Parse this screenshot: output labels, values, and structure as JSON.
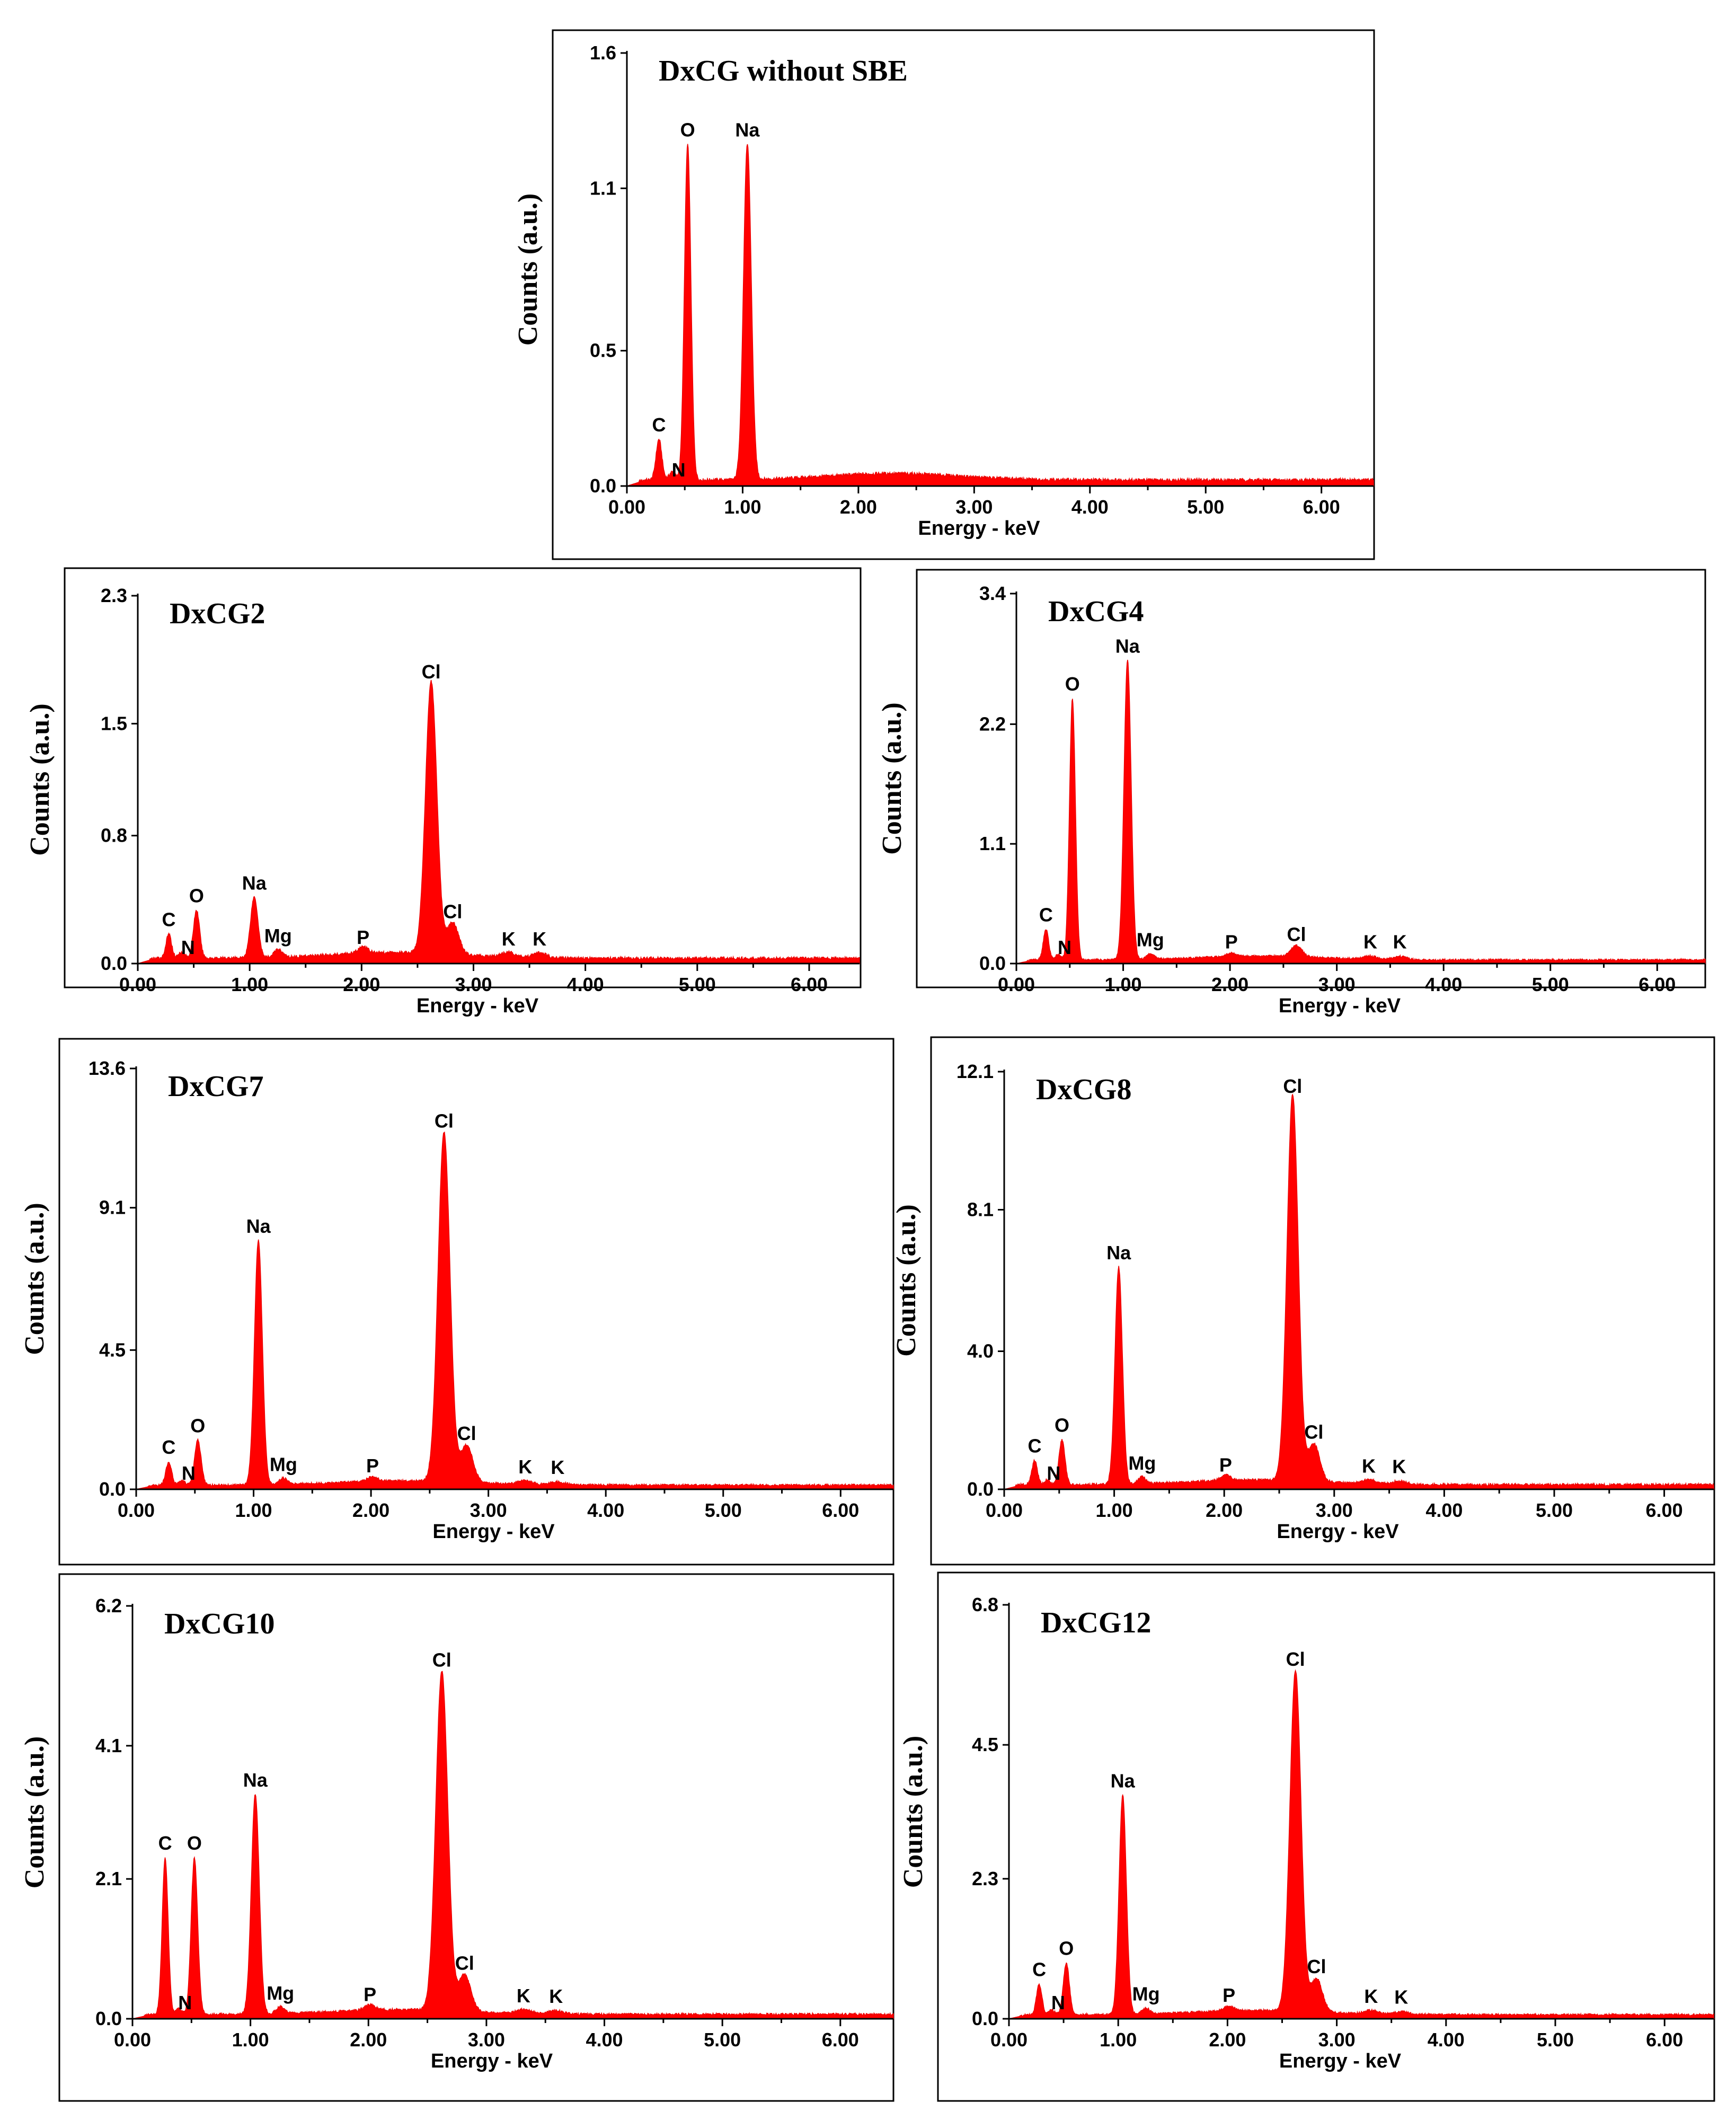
{
  "figure": {
    "common_xlabel": "Energy - keV",
    "common_ylabel": "Counts (a.u.)",
    "spectrum_color": "#ff0000"
  },
  "chart_data": [
    {
      "type": "area",
      "title": "DxCG without SBE",
      "xlabel": "Energy - keV",
      "ylabel": "Counts (a.u.)",
      "xlim": [
        0,
        6.45
      ],
      "ylim": [
        0,
        1.6
      ],
      "xticks": [
        "0.00",
        "1.00",
        "2.00",
        "3.00",
        "4.00",
        "5.00",
        "6.00"
      ],
      "yticks": [
        {
          "v": 0.0,
          "label": "0.0"
        },
        {
          "v": 0.5,
          "label": "0.5"
        },
        {
          "v": 1.1,
          "label": "1.1"
        },
        {
          "v": 1.6,
          "label": "1.6"
        }
      ],
      "baseline": 0.02,
      "peaks": [
        {
          "element": "C",
          "energy": 0.277,
          "height": 0.15
        },
        {
          "element": "N",
          "energy": 0.392,
          "height": 0.03
        },
        {
          "element": "O",
          "energy": 0.525,
          "height": 1.24
        },
        {
          "element": "Na",
          "energy": 1.041,
          "height": 1.24
        }
      ]
    },
    {
      "type": "area",
      "title": "DxCG2",
      "xlabel": "Energy - keV",
      "ylabel": "Counts (a.u.)",
      "xlim": [
        0,
        6.45
      ],
      "ylim": [
        0,
        2.3
      ],
      "xticks": [
        "0.00",
        "1.00",
        "2.00",
        "3.00",
        "4.00",
        "5.00",
        "6.00"
      ],
      "yticks": [
        {
          "v": 0.0,
          "label": "0.0"
        },
        {
          "v": 0.8,
          "label": "0.8"
        },
        {
          "v": 1.5,
          "label": "1.5"
        },
        {
          "v": 2.3,
          "label": "2.3"
        }
      ],
      "baseline": 0.03,
      "peaks": [
        {
          "element": "C",
          "energy": 0.277,
          "height": 0.15
        },
        {
          "element": "N",
          "energy": 0.392,
          "height": 0.04
        },
        {
          "element": "O",
          "energy": 0.525,
          "height": 0.3
        },
        {
          "element": "Na",
          "energy": 1.041,
          "height": 0.38
        },
        {
          "element": "Mg",
          "energy": 1.254,
          "height": 0.05
        },
        {
          "element": "P",
          "energy": 2.013,
          "height": 0.04
        },
        {
          "element": "Cl",
          "energy": 2.622,
          "height": 1.7
        },
        {
          "element": "Cl",
          "energy": 2.815,
          "height": 0.2
        },
        {
          "element": "K",
          "energy": 3.314,
          "height": 0.03
        },
        {
          "element": "K",
          "energy": 3.59,
          "height": 0.03
        }
      ]
    },
    {
      "type": "area",
      "title": "DxCG4",
      "xlabel": "Energy - keV",
      "ylabel": "Counts (a.u.)",
      "xlim": [
        0,
        6.45
      ],
      "ylim": [
        0,
        3.4
      ],
      "xticks": [
        "0.00",
        "1.00",
        "2.00",
        "3.00",
        "4.00",
        "5.00",
        "6.00"
      ],
      "yticks": [
        {
          "v": 0.0,
          "label": "0.0"
        },
        {
          "v": 1.1,
          "label": "1.1"
        },
        {
          "v": 2.2,
          "label": "2.2"
        },
        {
          "v": 3.4,
          "label": "3.4"
        }
      ],
      "baseline": 0.03,
      "peaks": [
        {
          "element": "C",
          "energy": 0.277,
          "height": 0.28
        },
        {
          "element": "N",
          "energy": 0.392,
          "height": 0.05
        },
        {
          "element": "O",
          "energy": 0.525,
          "height": 2.4
        },
        {
          "element": "Na",
          "energy": 1.041,
          "height": 2.75
        },
        {
          "element": "Mg",
          "energy": 1.254,
          "height": 0.05
        },
        {
          "element": "P",
          "energy": 2.013,
          "height": 0.03
        },
        {
          "element": "Cl",
          "energy": 2.622,
          "height": 0.1
        },
        {
          "element": "K",
          "energy": 3.314,
          "height": 0.03
        },
        {
          "element": "K",
          "energy": 3.59,
          "height": 0.03
        }
      ]
    },
    {
      "type": "area",
      "title": "DxCG7",
      "xlabel": "Energy - keV",
      "ylabel": "Counts (a.u.)",
      "xlim": [
        0,
        6.45
      ],
      "ylim": [
        0,
        13.6
      ],
      "xticks": [
        "0.00",
        "1.00",
        "2.00",
        "3.00",
        "4.00",
        "5.00",
        "6.00"
      ],
      "yticks": [
        {
          "v": 0.0,
          "label": "0.0"
        },
        {
          "v": 4.5,
          "label": "4.5"
        },
        {
          "v": 9.1,
          "label": "9.1"
        },
        {
          "v": 13.6,
          "label": "13.6"
        }
      ],
      "baseline": 0.12,
      "peaks": [
        {
          "element": "C",
          "energy": 0.277,
          "height": 0.75
        },
        {
          "element": "N",
          "energy": 0.392,
          "height": 0.15
        },
        {
          "element": "O",
          "energy": 0.525,
          "height": 1.45
        },
        {
          "element": "Na",
          "energy": 1.041,
          "height": 7.9
        },
        {
          "element": "Mg",
          "energy": 1.254,
          "height": 0.2
        },
        {
          "element": "P",
          "energy": 2.013,
          "height": 0.15
        },
        {
          "element": "Cl",
          "energy": 2.622,
          "height": 11.3
        },
        {
          "element": "Cl",
          "energy": 2.815,
          "height": 1.2
        },
        {
          "element": "K",
          "energy": 3.314,
          "height": 0.12
        },
        {
          "element": "K",
          "energy": 3.59,
          "height": 0.1
        }
      ]
    },
    {
      "type": "area",
      "title": "DxCG8",
      "xlabel": "Energy - keV",
      "ylabel": "Counts (a.u.)",
      "xlim": [
        0,
        6.45
      ],
      "ylim": [
        0,
        12.1
      ],
      "xticks": [
        "0.00",
        "1.00",
        "2.00",
        "3.00",
        "4.00",
        "5.00",
        "6.00"
      ],
      "yticks": [
        {
          "v": 0.0,
          "label": "0.0"
        },
        {
          "v": 4.0,
          "label": "4.0"
        },
        {
          "v": 8.1,
          "label": "8.1"
        },
        {
          "v": 12.1,
          "label": "12.1"
        }
      ],
      "baseline": 0.12,
      "peaks": [
        {
          "element": "C",
          "energy": 0.277,
          "height": 0.7
        },
        {
          "element": "N",
          "energy": 0.392,
          "height": 0.15
        },
        {
          "element": "O",
          "energy": 0.525,
          "height": 1.3
        },
        {
          "element": "Na",
          "energy": 1.041,
          "height": 6.3
        },
        {
          "element": "Mg",
          "energy": 1.254,
          "height": 0.2
        },
        {
          "element": "P",
          "energy": 2.013,
          "height": 0.15
        },
        {
          "element": "Cl",
          "energy": 2.622,
          "height": 11.2
        },
        {
          "element": "Cl",
          "energy": 2.815,
          "height": 1.1
        },
        {
          "element": "K",
          "energy": 3.314,
          "height": 0.12
        },
        {
          "element": "K",
          "energy": 3.59,
          "height": 0.1
        }
      ]
    },
    {
      "type": "area",
      "title": "DxCG10",
      "xlabel": "Energy - keV",
      "ylabel": "Counts (a.u.)",
      "xlim": [
        0,
        6.45
      ],
      "ylim": [
        0,
        6.2
      ],
      "xticks": [
        "0.00",
        "1.00",
        "2.00",
        "3.00",
        "4.00",
        "5.00",
        "6.00"
      ],
      "yticks": [
        {
          "v": 0.0,
          "label": "0.0"
        },
        {
          "v": 2.1,
          "label": "2.1"
        },
        {
          "v": 4.1,
          "label": "4.1"
        },
        {
          "v": 6.2,
          "label": "6.2"
        }
      ],
      "baseline": 0.06,
      "peaks": [
        {
          "element": "C",
          "energy": 0.277,
          "height": 2.35
        },
        {
          "element": "N",
          "energy": 0.392,
          "height": 0.08
        },
        {
          "element": "O",
          "energy": 0.525,
          "height": 2.35
        },
        {
          "element": "Na",
          "energy": 1.041,
          "height": 3.3
        },
        {
          "element": "Mg",
          "energy": 1.254,
          "height": 0.1
        },
        {
          "element": "P",
          "energy": 2.013,
          "height": 0.08
        },
        {
          "element": "Cl",
          "energy": 2.622,
          "height": 5.1
        },
        {
          "element": "Cl",
          "energy": 2.815,
          "height": 0.55
        },
        {
          "element": "K",
          "energy": 3.314,
          "height": 0.06
        },
        {
          "element": "K",
          "energy": 3.59,
          "height": 0.05
        }
      ]
    },
    {
      "type": "area",
      "title": "DxCG12",
      "xlabel": "Energy - keV",
      "ylabel": "Counts (a.u.)",
      "xlim": [
        0,
        6.45
      ],
      "ylim": [
        0,
        6.8
      ],
      "xticks": [
        "0.00",
        "1.00",
        "2.00",
        "3.00",
        "4.00",
        "5.00",
        "6.00"
      ],
      "yticks": [
        {
          "v": 0.0,
          "label": "0.0"
        },
        {
          "v": 2.3,
          "label": "2.3"
        },
        {
          "v": 4.5,
          "label": "4.5"
        },
        {
          "v": 6.8,
          "label": "6.8"
        }
      ],
      "baseline": 0.06,
      "peaks": [
        {
          "element": "C",
          "energy": 0.277,
          "height": 0.5
        },
        {
          "element": "N",
          "energy": 0.392,
          "height": 0.08
        },
        {
          "element": "O",
          "energy": 0.525,
          "height": 0.85
        },
        {
          "element": "Na",
          "energy": 1.041,
          "height": 3.6
        },
        {
          "element": "Mg",
          "energy": 1.254,
          "height": 0.1
        },
        {
          "element": "P",
          "energy": 2.013,
          "height": 0.08
        },
        {
          "element": "Cl",
          "energy": 2.622,
          "height": 5.6
        },
        {
          "element": "Cl",
          "energy": 2.815,
          "height": 0.55
        },
        {
          "element": "K",
          "energy": 3.314,
          "height": 0.06
        },
        {
          "element": "K",
          "energy": 3.59,
          "height": 0.05
        }
      ]
    }
  ]
}
